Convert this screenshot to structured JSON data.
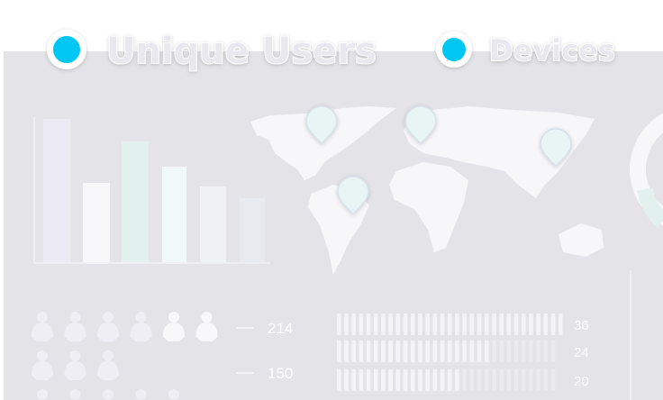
{
  "legend": {
    "items": [
      {
        "label": "Unique Users"
      },
      {
        "label": "Devices"
      }
    ]
  },
  "bar_chart": {
    "values": [
      159,
      88,
      134,
      106,
      84,
      71
    ]
  },
  "people_stats": {
    "rows": [
      {
        "value": 214
      },
      {
        "value": 150
      }
    ]
  },
  "stripe_stats": {
    "rows": [
      {
        "value": 36
      },
      {
        "value": 24
      },
      {
        "value": 20
      }
    ]
  }
}
